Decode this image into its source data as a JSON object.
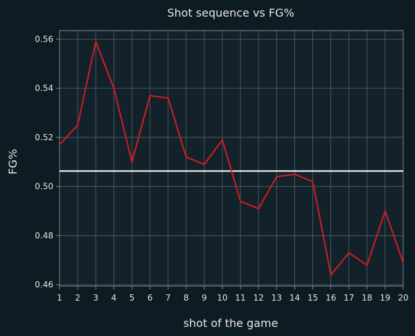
{
  "chart_data": {
    "type": "line",
    "title": "Shot sequence vs FG%",
    "xlabel": "shot of the game",
    "ylabel": "FG%",
    "x": [
      1,
      2,
      3,
      4,
      5,
      6,
      7,
      8,
      9,
      10,
      11,
      12,
      13,
      14,
      15,
      16,
      17,
      18,
      19,
      20
    ],
    "series": [
      {
        "values": [
          0.517,
          0.525,
          0.559,
          0.54,
          0.51,
          0.537,
          0.536,
          0.512,
          0.509,
          0.519,
          0.494,
          0.491,
          0.504,
          0.505,
          0.502,
          0.464,
          0.473,
          0.468,
          0.49,
          0.469
        ],
        "color": "#d41c22"
      }
    ],
    "reference_line": {
      "y": 0.5063,
      "color": "#ffffff"
    },
    "xlim": [
      1,
      20
    ],
    "ylim": [
      0.4595,
      0.5635
    ],
    "yticks": [
      "0.46",
      "0.48",
      "0.50",
      "0.52",
      "0.54",
      "0.56"
    ],
    "xticks": [
      "1",
      "2",
      "3",
      "4",
      "5",
      "6",
      "7",
      "8",
      "9",
      "10",
      "11",
      "12",
      "13",
      "14",
      "15",
      "16",
      "17",
      "18",
      "19",
      "20"
    ],
    "grid": true,
    "colors": {
      "background": "#0d1b22",
      "plot_background": "#13222a",
      "grid": "#56656b",
      "text": "#e6e6e6",
      "spine": "#7d8a90"
    }
  }
}
